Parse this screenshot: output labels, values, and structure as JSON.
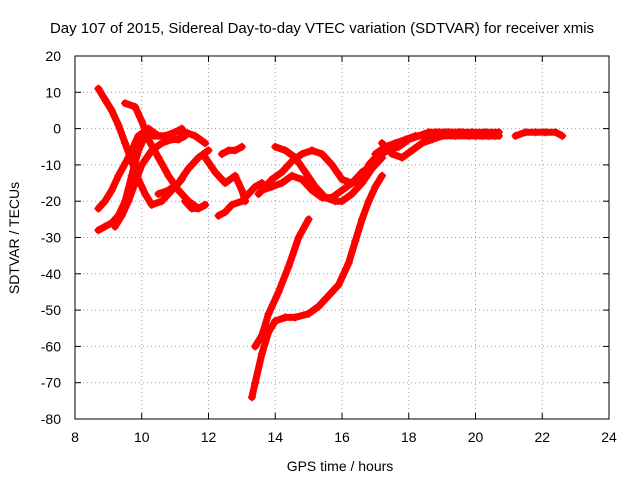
{
  "chart_data": {
    "type": "scatter",
    "title": "Day 107 of 2015, Sidereal Day-to-day VTEC variation (SDTVAR) for receiver xmis",
    "xlabel": "GPS time / hours",
    "ylabel": "SDTVAR / TECUs",
    "xlim": [
      8,
      24
    ],
    "ylim": [
      -80,
      20
    ],
    "xticks": [
      8,
      10,
      12,
      14,
      16,
      18,
      20,
      22,
      24
    ],
    "yticks": [
      -80,
      -70,
      -60,
      -50,
      -40,
      -30,
      -20,
      -10,
      0,
      10,
      20
    ],
    "grid": true,
    "marker": "+",
    "color": "#ff0000",
    "series": [
      {
        "x": [
          8.7,
          8.9,
          9.1,
          9.3,
          9.5,
          9.7,
          9.9,
          10.1,
          10.3,
          10.6,
          10.9,
          11.2
        ],
        "y": [
          11,
          8,
          5,
          1,
          -4,
          -9,
          -14,
          -18,
          -21,
          -20,
          -17,
          -14
        ]
      },
      {
        "x": [
          9.5,
          9.8,
          10.0,
          10.2,
          10.5,
          10.8,
          11.1,
          11.4,
          11.7,
          11.9
        ],
        "y": [
          7,
          6,
          2,
          -3,
          -8,
          -13,
          -17,
          -20,
          -22,
          -21
        ]
      },
      {
        "x": [
          8.7,
          8.9,
          9.1,
          9.3,
          9.5,
          9.7,
          9.9,
          10.1,
          10.4,
          10.7,
          11.0,
          11.3,
          11.6,
          11.9
        ],
        "y": [
          -28,
          -27,
          -26,
          -24,
          -20,
          -13,
          -6,
          -2,
          -2,
          -2,
          -1,
          -1,
          -2,
          -4
        ]
      },
      {
        "x": [
          8.7,
          8.9,
          9.1,
          9.3,
          9.6,
          9.9,
          10.2,
          10.5,
          10.8,
          11.0,
          11.2
        ],
        "y": [
          -22,
          -20,
          -17,
          -13,
          -8,
          -2,
          0,
          -2,
          -2,
          -1,
          0
        ]
      },
      {
        "x": [
          9.2,
          9.4,
          9.6,
          9.8,
          10.0,
          10.3,
          10.6,
          10.9,
          11.1,
          11.3
        ],
        "y": [
          -27,
          -24,
          -20,
          -15,
          -10,
          -6,
          -4,
          -3,
          -3,
          -2
        ]
      },
      {
        "x": [
          10.5,
          10.8,
          11.1,
          11.4,
          11.7,
          12.0
        ],
        "y": [
          -18,
          -17,
          -15,
          -11,
          -8,
          -6
        ]
      },
      {
        "x": [
          11.3,
          11.5,
          11.7,
          11.9
        ],
        "y": [
          -20,
          -22,
          -22,
          -21
        ]
      },
      {
        "x": [
          11.9,
          12.2,
          12.5,
          12.8,
          13.0,
          13.1
        ],
        "y": [
          -8,
          -12,
          -15,
          -13,
          -17,
          -20
        ]
      },
      {
        "x": [
          12.4,
          12.6,
          12.8,
          13.0
        ],
        "y": [
          -7,
          -6,
          -6,
          -5
        ]
      },
      {
        "x": [
          12.3,
          12.5,
          12.7,
          13.0,
          13.2,
          13.4,
          13.6
        ],
        "y": [
          -24,
          -23,
          -21,
          -20,
          -18,
          -16,
          -15
        ]
      },
      {
        "x": [
          13.5,
          13.7,
          13.9,
          14.2,
          14.5,
          14.8,
          15.1,
          15.4,
          15.7,
          16.0,
          16.3,
          16.6,
          16.9,
          17.2
        ],
        "y": [
          -18,
          -16,
          -14,
          -12,
          -9,
          -7,
          -6,
          -7,
          -10,
          -14,
          -15,
          -14,
          -11,
          -8
        ]
      },
      {
        "x": [
          14.0,
          14.3,
          14.6,
          14.9,
          15.2,
          15.5,
          15.8,
          16.0,
          16.3,
          16.6,
          16.9,
          17.2,
          17.5
        ],
        "y": [
          -5,
          -6,
          -8,
          -12,
          -16,
          -19,
          -20,
          -20,
          -18,
          -15,
          -11,
          -7,
          -5
        ]
      },
      {
        "x": [
          13.6,
          13.9,
          14.2,
          14.5,
          14.8,
          15.1,
          15.4,
          15.7,
          16.0,
          16.3,
          16.6,
          16.9
        ],
        "y": [
          -17,
          -16,
          -15,
          -13,
          -14,
          -17,
          -19,
          -19,
          -17,
          -15,
          -12,
          -10
        ]
      },
      {
        "x": [
          13.4,
          13.6,
          13.8,
          14.1,
          14.4,
          14.7,
          15.0
        ],
        "y": [
          -60,
          -57,
          -51,
          -45,
          -38,
          -30,
          -25
        ]
      },
      {
        "x": [
          13.3,
          13.4,
          13.6,
          13.8,
          14.0,
          14.3,
          14.6,
          15.0,
          15.3,
          15.6,
          15.9,
          16.2,
          16.4,
          16.6,
          16.8,
          17.0,
          17.2
        ],
        "y": [
          -74,
          -70,
          -62,
          -56,
          -53,
          -52,
          -52,
          -51,
          -49,
          -46,
          -43,
          -37,
          -31,
          -25,
          -20,
          -16,
          -13
        ]
      },
      {
        "x": [
          16.8,
          17.1,
          17.4,
          17.7,
          18.0,
          18.3,
          18.6,
          18.9,
          19.2,
          19.6,
          20.0,
          20.4,
          20.7
        ],
        "y": [
          -10,
          -7,
          -6,
          -5,
          -3,
          -2,
          -1,
          -1,
          -1,
          -1,
          -2,
          -2,
          -2
        ]
      },
      {
        "x": [
          17.0,
          17.3,
          17.6,
          17.9,
          18.2,
          18.5,
          18.8,
          19.1,
          19.5,
          19.9,
          20.3,
          20.7
        ],
        "y": [
          -7,
          -5,
          -4,
          -3,
          -2,
          -2,
          -1,
          -1,
          -1,
          -1,
          -1,
          -1
        ]
      },
      {
        "x": [
          17.2,
          17.5,
          17.8,
          18.1,
          18.4,
          18.7,
          19.0,
          19.4,
          19.8,
          20.2,
          20.6
        ],
        "y": [
          -4,
          -7,
          -8,
          -6,
          -4,
          -3,
          -2,
          -2,
          -2,
          -2,
          -2
        ]
      },
      {
        "x": [
          21.2,
          21.5,
          21.8,
          22.1,
          22.4,
          22.6
        ],
        "y": [
          -2,
          -1,
          -1,
          -1,
          -1,
          -2
        ]
      }
    ]
  }
}
